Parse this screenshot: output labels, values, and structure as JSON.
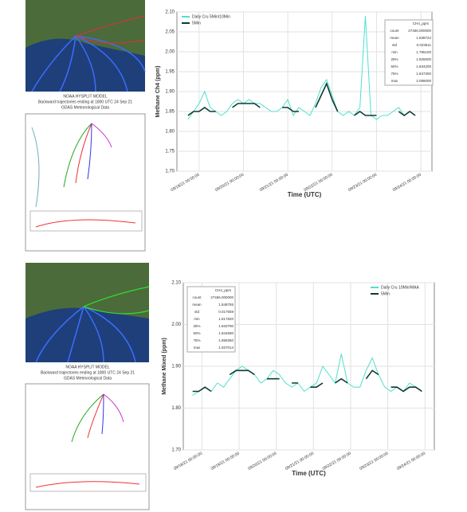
{
  "panels": [
    {
      "caption": [
        "NOAA HYSPLIT MODEL",
        "Backward trajectories ending at 1800 UTC 24 Sep 21",
        "GDAS Meteorological Data"
      ]
    },
    {
      "caption": [
        "NOAA HYSPLIT MODEL",
        "Backward trajectories ending at 1800 UTC 24 Sep 21",
        "GDAS Meteorological Data"
      ]
    }
  ],
  "chart_data": [
    {
      "type": "line",
      "ylabel": "Methane Ch4 (ppm)",
      "xlabel": "Time (UTC)",
      "ylim": [
        1.7,
        2.1
      ],
      "yticks": [
        {
          "value": 1.7,
          "label": "1.70"
        },
        1.75,
        {
          "value": 1.8,
          "label": "1.80"
        },
        1.85,
        {
          "value": 1.9,
          "label": "1.90"
        },
        1.95,
        {
          "value": 2.0,
          "label": "2.00"
        },
        2.05,
        {
          "value": 2.1,
          "label": "2.10"
        }
      ],
      "xlim": [
        0,
        138
      ],
      "xticks": [
        {
          "value": 12,
          "label": "09/19/21 00:00:00"
        },
        {
          "value": 36,
          "label": "09/20/21 00:00:00"
        },
        {
          "value": 60,
          "label": "09/21/21 00:00:00"
        },
        {
          "value": 84,
          "label": "09/22/21 00:00:00"
        },
        {
          "value": 108,
          "label": "09/23/21 00:00:00"
        },
        {
          "value": 132,
          "label": "09/24/21 00:00:00"
        }
      ],
      "grid": true,
      "legend": "upper left",
      "x": [
        6,
        9,
        12,
        15,
        18,
        21,
        24,
        27,
        30,
        33,
        36,
        39,
        42,
        45,
        48,
        51,
        54,
        57,
        60,
        63,
        66,
        69,
        72,
        75,
        78,
        81,
        84,
        87,
        90,
        93,
        96,
        99,
        102,
        105,
        108,
        111,
        114,
        117,
        120,
        123,
        126,
        129
      ],
      "series": [
        {
          "name": "Daily Cru 5Min/10Min",
          "color": "#4fe0cc",
          "values": [
            1.83,
            1.85,
            1.87,
            1.9,
            1.86,
            1.85,
            1.84,
            1.85,
            1.87,
            1.88,
            1.87,
            1.88,
            1.87,
            1.87,
            1.86,
            1.85,
            1.85,
            1.86,
            1.88,
            1.84,
            1.86,
            1.85,
            1.84,
            1.87,
            1.91,
            1.93,
            1.89,
            1.85,
            1.84,
            1.85,
            1.84,
            1.86,
            2.09,
            1.84,
            1.83,
            1.84,
            1.84,
            1.85,
            1.86,
            1.84,
            1.85,
            1.84
          ]
        },
        {
          "name": "5Min",
          "color": "#0d3b33",
          "values": [
            1.84,
            1.85,
            1.85,
            1.86,
            1.85,
            1.85,
            null,
            null,
            1.86,
            1.87,
            1.87,
            1.87,
            1.87,
            1.86,
            null,
            null,
            null,
            1.86,
            1.86,
            1.85,
            1.85,
            null,
            null,
            1.86,
            1.89,
            1.92,
            1.88,
            1.85,
            null,
            null,
            1.84,
            1.85,
            1.84,
            1.84,
            1.84,
            null,
            null,
            null,
            1.85,
            1.84,
            1.85,
            1.84
          ]
        }
      ],
      "statistics": {
        "header": "CH4_ppm",
        "rows": [
          [
            "count",
            "27466.000000"
          ],
          [
            "mean",
            "1.838722"
          ],
          [
            "std",
            "0.023511"
          ],
          [
            "min",
            "1.795100"
          ],
          [
            "25%",
            "1.825000"
          ],
          [
            "50%",
            "1.834200"
          ],
          [
            "75%",
            "1.847300"
          ],
          [
            "max",
            "2.088000"
          ]
        ]
      }
    },
    {
      "type": "line",
      "ylabel": "Methane Mixed (ppm)",
      "xlabel": "Time (UTC)",
      "ylim": [
        1.7,
        2.1
      ],
      "yticks": [
        {
          "value": 1.7,
          "label": "1.70"
        },
        {
          "value": 1.8,
          "label": "1.80"
        },
        {
          "value": 1.9,
          "label": "1.90"
        },
        {
          "value": 2.0,
          "label": "2.00"
        },
        {
          "value": 2.1,
          "label": "2.10"
        }
      ],
      "xlim": [
        0,
        162
      ],
      "xticks": [
        {
          "value": 12,
          "label": "09/18/21 00:00:00"
        },
        {
          "value": 36,
          "label": "09/19/21 00:00:00"
        },
        {
          "value": 60,
          "label": "09/20/21 00:00:00"
        },
        {
          "value": 84,
          "label": "09/21/21 00:00:00"
        },
        {
          "value": 108,
          "label": "09/22/21 00:00:00"
        },
        {
          "value": 132,
          "label": "09/23/21 00:00:00"
        },
        {
          "value": 156,
          "label": "09/24/21 00:00:00"
        }
      ],
      "grid": true,
      "legend": "upper right",
      "x": [
        6,
        10,
        14,
        18,
        22,
        26,
        30,
        34,
        38,
        42,
        46,
        50,
        54,
        58,
        62,
        66,
        70,
        74,
        78,
        82,
        86,
        90,
        94,
        98,
        102,
        106,
        110,
        114,
        118,
        122,
        126,
        130,
        134,
        138,
        142,
        146,
        150,
        154
      ],
      "series": [
        {
          "name": "Daily Cru 10Min/MAA",
          "color": "#4fe0cc",
          "values": [
            1.83,
            1.84,
            1.85,
            1.84,
            1.86,
            1.85,
            1.87,
            1.89,
            1.9,
            1.89,
            1.88,
            1.86,
            1.87,
            1.89,
            1.88,
            1.86,
            1.85,
            1.86,
            1.84,
            1.85,
            1.86,
            1.9,
            1.88,
            1.86,
            1.93,
            1.86,
            1.85,
            1.85,
            1.89,
            1.92,
            1.88,
            1.85,
            1.84,
            1.85,
            1.84,
            1.86,
            1.85,
            1.84
          ]
        },
        {
          "name": "5Min",
          "color": "#0d3b33",
          "values": [
            1.84,
            1.84,
            1.85,
            1.84,
            null,
            null,
            1.88,
            1.89,
            1.89,
            1.89,
            1.88,
            null,
            1.87,
            1.87,
            1.87,
            null,
            1.86,
            1.86,
            null,
            1.85,
            1.85,
            1.86,
            null,
            1.86,
            1.87,
            1.86,
            null,
            null,
            1.87,
            1.89,
            1.88,
            null,
            1.85,
            1.85,
            1.84,
            1.85,
            1.85,
            1.84
          ]
        }
      ],
      "statistics": {
        "header": "CH4_ppm",
        "rows": [
          [
            "count",
            "27466.000000"
          ],
          [
            "mean",
            "1.848755"
          ],
          [
            "std",
            "0.017659"
          ],
          [
            "min",
            "1.817820"
          ],
          [
            "25%",
            "1.833790"
          ],
          [
            "50%",
            "1.844590"
          ],
          [
            "75%",
            "1.858360"
          ],
          [
            "max",
            "1.927014"
          ]
        ]
      }
    }
  ]
}
